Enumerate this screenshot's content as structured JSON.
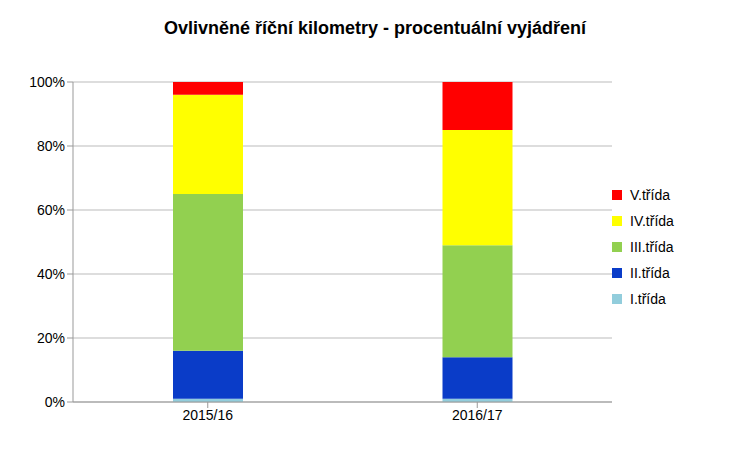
{
  "chart_data": {
    "type": "bar",
    "title": "Ovlivněné říční kilometry - procentuální vyjádření",
    "categories": [
      "2015/16",
      "2016/17"
    ],
    "series": [
      {
        "name": "I.třída",
        "color": "#92cddc",
        "values": [
          1,
          1
        ]
      },
      {
        "name": "II.třída",
        "color": "#0a3cc8",
        "values": [
          15,
          13
        ]
      },
      {
        "name": "III.třída",
        "color": "#92d050",
        "values": [
          49,
          35
        ]
      },
      {
        "name": "IV.třída",
        "color": "#ffff00",
        "values": [
          31,
          36
        ]
      },
      {
        "name": "V.třída",
        "color": "#ff0000",
        "values": [
          4,
          15
        ]
      }
    ],
    "stacked": true,
    "ylim": [
      0,
      100
    ],
    "yticks": [
      {
        "value": 0,
        "label": "0%"
      },
      {
        "value": 20,
        "label": "20%"
      },
      {
        "value": 40,
        "label": "40%"
      },
      {
        "value": 60,
        "label": "60%"
      },
      {
        "value": 80,
        "label": "80%"
      },
      {
        "value": 100,
        "label": "100%"
      }
    ],
    "grid": true,
    "legend": "right"
  }
}
